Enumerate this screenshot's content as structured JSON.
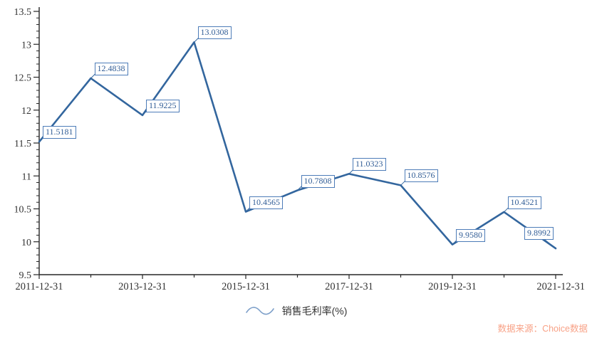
{
  "chart_data": {
    "type": "line",
    "title": "",
    "xlabel": "",
    "ylabel": "",
    "series": [
      {
        "name": "销售毛利率(%)",
        "values": [
          11.5181,
          12.4838,
          11.9225,
          13.0308,
          10.4565,
          10.7808,
          11.0323,
          10.8576,
          9.958,
          10.4521,
          9.8992
        ]
      }
    ],
    "point_labels": [
      "11.5181",
      "12.4838",
      "11.9225",
      "13.0308",
      "10.4565",
      "10.7808",
      "11.0323",
      "10.8576",
      "9.9580",
      "10.4521",
      "9.8992"
    ],
    "x_tick_labels": [
      "2011-12-31",
      "2013-12-31",
      "2015-12-31",
      "2017-12-31",
      "2019-12-31",
      "2021-12-31"
    ],
    "y_tick_labels": [
      "13.5",
      "13",
      "12.5",
      "12",
      "11.5",
      "11",
      "10.5",
      "10",
      "9.5"
    ],
    "ylim": [
      9.5,
      13.5
    ],
    "y_major_step": 0.5,
    "y_minor_step": 0.1,
    "grid": "off",
    "legend_position": "bottom-center"
  },
  "legend": {
    "label": "销售毛利率(%)"
  },
  "source": {
    "label": "数据来源：Choice数据"
  },
  "colors": {
    "background": "#ffffff",
    "line": "#33669e",
    "callout_border": "#4d7cb8",
    "callout_text": "#315d96",
    "axis": "#262626",
    "tick_text": "#333333",
    "legend_wave": "#7d9fc9",
    "source_text": "#f8a287"
  }
}
